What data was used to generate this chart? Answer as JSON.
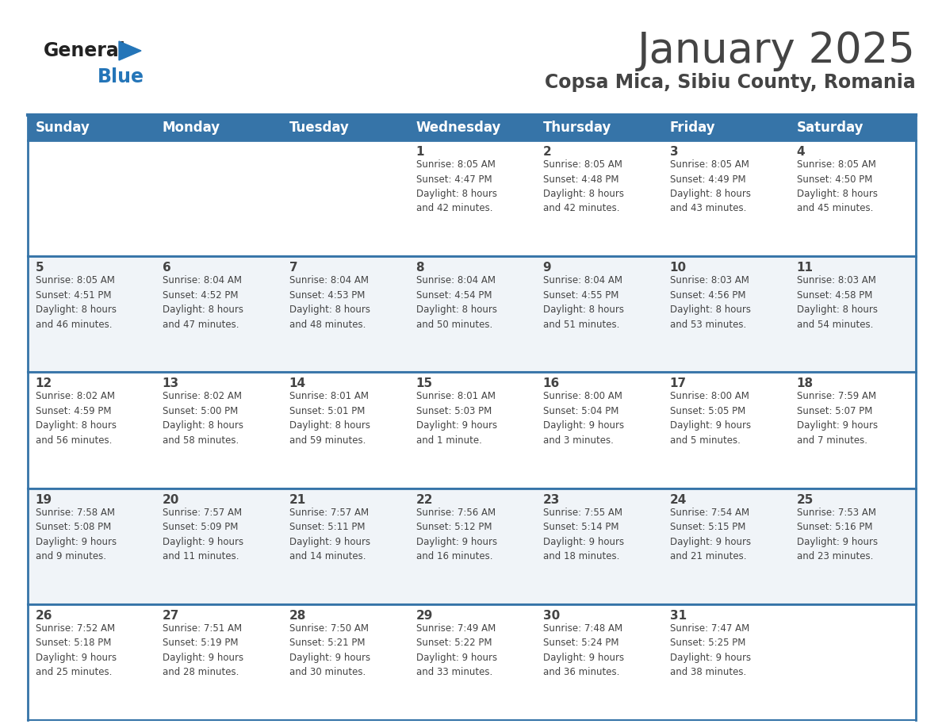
{
  "title": "January 2025",
  "subtitle": "Copsa Mica, Sibiu County, Romania",
  "header_bg_color": "#3674a8",
  "header_text_color": "#FFFFFF",
  "bg_color": "#FFFFFF",
  "alt_row_color": "#f0f4f8",
  "border_color": "#3674a8",
  "text_color": "#444444",
  "days_of_week": [
    "Sunday",
    "Monday",
    "Tuesday",
    "Wednesday",
    "Thursday",
    "Friday",
    "Saturday"
  ],
  "calendar": [
    [
      {
        "day": "",
        "info": ""
      },
      {
        "day": "",
        "info": ""
      },
      {
        "day": "",
        "info": ""
      },
      {
        "day": "1",
        "info": "Sunrise: 8:05 AM\nSunset: 4:47 PM\nDaylight: 8 hours\nand 42 minutes."
      },
      {
        "day": "2",
        "info": "Sunrise: 8:05 AM\nSunset: 4:48 PM\nDaylight: 8 hours\nand 42 minutes."
      },
      {
        "day": "3",
        "info": "Sunrise: 8:05 AM\nSunset: 4:49 PM\nDaylight: 8 hours\nand 43 minutes."
      },
      {
        "day": "4",
        "info": "Sunrise: 8:05 AM\nSunset: 4:50 PM\nDaylight: 8 hours\nand 45 minutes."
      }
    ],
    [
      {
        "day": "5",
        "info": "Sunrise: 8:05 AM\nSunset: 4:51 PM\nDaylight: 8 hours\nand 46 minutes."
      },
      {
        "day": "6",
        "info": "Sunrise: 8:04 AM\nSunset: 4:52 PM\nDaylight: 8 hours\nand 47 minutes."
      },
      {
        "day": "7",
        "info": "Sunrise: 8:04 AM\nSunset: 4:53 PM\nDaylight: 8 hours\nand 48 minutes."
      },
      {
        "day": "8",
        "info": "Sunrise: 8:04 AM\nSunset: 4:54 PM\nDaylight: 8 hours\nand 50 minutes."
      },
      {
        "day": "9",
        "info": "Sunrise: 8:04 AM\nSunset: 4:55 PM\nDaylight: 8 hours\nand 51 minutes."
      },
      {
        "day": "10",
        "info": "Sunrise: 8:03 AM\nSunset: 4:56 PM\nDaylight: 8 hours\nand 53 minutes."
      },
      {
        "day": "11",
        "info": "Sunrise: 8:03 AM\nSunset: 4:58 PM\nDaylight: 8 hours\nand 54 minutes."
      }
    ],
    [
      {
        "day": "12",
        "info": "Sunrise: 8:02 AM\nSunset: 4:59 PM\nDaylight: 8 hours\nand 56 minutes."
      },
      {
        "day": "13",
        "info": "Sunrise: 8:02 AM\nSunset: 5:00 PM\nDaylight: 8 hours\nand 58 minutes."
      },
      {
        "day": "14",
        "info": "Sunrise: 8:01 AM\nSunset: 5:01 PM\nDaylight: 8 hours\nand 59 minutes."
      },
      {
        "day": "15",
        "info": "Sunrise: 8:01 AM\nSunset: 5:03 PM\nDaylight: 9 hours\nand 1 minute."
      },
      {
        "day": "16",
        "info": "Sunrise: 8:00 AM\nSunset: 5:04 PM\nDaylight: 9 hours\nand 3 minutes."
      },
      {
        "day": "17",
        "info": "Sunrise: 8:00 AM\nSunset: 5:05 PM\nDaylight: 9 hours\nand 5 minutes."
      },
      {
        "day": "18",
        "info": "Sunrise: 7:59 AM\nSunset: 5:07 PM\nDaylight: 9 hours\nand 7 minutes."
      }
    ],
    [
      {
        "day": "19",
        "info": "Sunrise: 7:58 AM\nSunset: 5:08 PM\nDaylight: 9 hours\nand 9 minutes."
      },
      {
        "day": "20",
        "info": "Sunrise: 7:57 AM\nSunset: 5:09 PM\nDaylight: 9 hours\nand 11 minutes."
      },
      {
        "day": "21",
        "info": "Sunrise: 7:57 AM\nSunset: 5:11 PM\nDaylight: 9 hours\nand 14 minutes."
      },
      {
        "day": "22",
        "info": "Sunrise: 7:56 AM\nSunset: 5:12 PM\nDaylight: 9 hours\nand 16 minutes."
      },
      {
        "day": "23",
        "info": "Sunrise: 7:55 AM\nSunset: 5:14 PM\nDaylight: 9 hours\nand 18 minutes."
      },
      {
        "day": "24",
        "info": "Sunrise: 7:54 AM\nSunset: 5:15 PM\nDaylight: 9 hours\nand 21 minutes."
      },
      {
        "day": "25",
        "info": "Sunrise: 7:53 AM\nSunset: 5:16 PM\nDaylight: 9 hours\nand 23 minutes."
      }
    ],
    [
      {
        "day": "26",
        "info": "Sunrise: 7:52 AM\nSunset: 5:18 PM\nDaylight: 9 hours\nand 25 minutes."
      },
      {
        "day": "27",
        "info": "Sunrise: 7:51 AM\nSunset: 5:19 PM\nDaylight: 9 hours\nand 28 minutes."
      },
      {
        "day": "28",
        "info": "Sunrise: 7:50 AM\nSunset: 5:21 PM\nDaylight: 9 hours\nand 30 minutes."
      },
      {
        "day": "29",
        "info": "Sunrise: 7:49 AM\nSunset: 5:22 PM\nDaylight: 9 hours\nand 33 minutes."
      },
      {
        "day": "30",
        "info": "Sunrise: 7:48 AM\nSunset: 5:24 PM\nDaylight: 9 hours\nand 36 minutes."
      },
      {
        "day": "31",
        "info": "Sunrise: 7:47 AM\nSunset: 5:25 PM\nDaylight: 9 hours\nand 38 minutes."
      },
      {
        "day": "",
        "info": ""
      }
    ]
  ],
  "logo_text_general": "General",
  "logo_text_blue": "Blue",
  "logo_color_general": "#222222",
  "logo_color_blue": "#2475b8"
}
